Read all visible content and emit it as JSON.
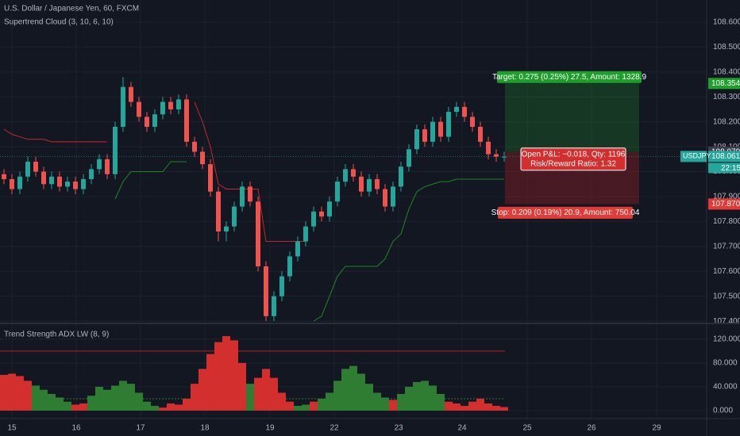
{
  "chart_data": [
    {
      "type": "candlestick",
      "title": "U.S. Dollar / Japanese Yen, 60, FXCM",
      "subtitle": "Supertrend Cloud (3, 10, 6, 10)",
      "symbol": "USDJPY",
      "up_color": "#26a69a",
      "down_color": "#ef5350",
      "open": [
        107.99,
        107.97,
        107.93,
        107.98,
        108.04,
        108.0,
        107.95,
        107.98,
        107.94,
        107.96,
        107.93,
        107.97,
        108.01,
        108.05,
        107.99,
        108.18,
        108.34,
        108.28,
        108.22,
        108.18,
        108.23,
        108.28,
        108.25,
        108.29,
        108.12,
        108.08,
        108.03,
        107.92,
        107.76,
        107.78,
        107.86,
        107.94,
        107.88,
        107.62,
        107.42,
        107.5,
        107.58,
        107.66,
        107.72,
        107.78,
        107.84,
        107.82,
        107.88,
        107.96,
        108.01,
        107.98,
        107.92,
        107.97,
        107.93,
        107.86,
        107.94,
        108.02,
        108.09,
        108.17,
        108.12,
        108.2,
        108.14,
        108.24,
        108.26,
        108.22,
        108.18,
        108.12,
        108.07,
        108.06
      ],
      "high": [
        108.01,
        107.99,
        108.0,
        108.06,
        108.06,
        108.02,
        108.0,
        108.0,
        107.98,
        107.98,
        107.99,
        108.03,
        108.07,
        108.07,
        108.2,
        108.38,
        108.36,
        108.3,
        108.24,
        108.25,
        108.3,
        108.3,
        108.31,
        108.31,
        108.14,
        108.1,
        108.05,
        107.94,
        107.8,
        107.88,
        107.96,
        107.96,
        107.9,
        107.64,
        107.52,
        107.6,
        107.68,
        107.74,
        107.8,
        107.86,
        107.86,
        107.9,
        107.98,
        108.03,
        108.03,
        108.0,
        107.99,
        107.99,
        107.95,
        107.96,
        108.04,
        108.11,
        108.19,
        108.19,
        108.22,
        108.22,
        108.26,
        108.28,
        108.28,
        108.24,
        108.2,
        108.14,
        108.09,
        108.08
      ],
      "low": [
        107.95,
        107.91,
        107.91,
        107.96,
        107.98,
        107.93,
        107.93,
        107.92,
        107.92,
        107.91,
        107.91,
        107.95,
        107.99,
        107.97,
        107.97,
        108.16,
        108.26,
        108.2,
        108.16,
        108.16,
        108.21,
        108.23,
        108.23,
        108.1,
        108.06,
        108.01,
        107.9,
        107.72,
        107.72,
        107.76,
        107.84,
        107.86,
        107.6,
        107.4,
        107.4,
        107.48,
        107.56,
        107.64,
        107.7,
        107.76,
        107.8,
        107.8,
        107.86,
        107.94,
        107.96,
        107.9,
        107.9,
        107.91,
        107.84,
        107.84,
        107.92,
        108.0,
        108.07,
        108.1,
        108.1,
        108.12,
        108.12,
        108.22,
        108.2,
        108.16,
        108.1,
        108.05,
        108.04,
        108.04
      ],
      "close": [
        107.97,
        107.93,
        107.98,
        108.04,
        108.0,
        107.95,
        107.98,
        107.94,
        107.96,
        107.93,
        107.97,
        108.01,
        108.05,
        107.99,
        108.18,
        108.34,
        108.28,
        108.22,
        108.18,
        108.23,
        108.28,
        108.25,
        108.29,
        108.12,
        108.08,
        108.03,
        107.92,
        107.76,
        107.78,
        107.86,
        107.94,
        107.88,
        107.62,
        107.42,
        107.5,
        107.58,
        107.66,
        107.72,
        107.78,
        107.84,
        107.82,
        107.88,
        107.96,
        108.01,
        107.98,
        107.92,
        107.97,
        107.93,
        107.86,
        107.94,
        108.02,
        108.09,
        108.17,
        108.12,
        108.2,
        108.14,
        108.24,
        108.26,
        108.22,
        108.18,
        108.12,
        108.07,
        108.06,
        108.06
      ],
      "series": [
        {
          "color": "#c62828",
          "values": [
            108.17,
            108.15,
            108.14,
            108.13,
            108.13,
            108.13,
            108.12,
            108.12,
            108.12,
            108.12,
            108.12,
            108.12,
            108.12,
            108.12,
            null,
            null,
            null,
            null,
            null,
            null,
            null,
            null,
            null,
            null,
            108.28,
            108.2,
            108.1,
            107.95,
            107.93,
            107.93,
            107.93,
            107.93,
            107.93,
            107.72,
            107.72,
            107.72,
            107.72,
            107.72,
            107.72,
            null,
            null,
            null,
            null,
            null,
            null,
            null,
            null,
            null,
            null,
            null,
            null,
            null,
            null,
            null,
            null,
            null,
            null,
            null,
            null,
            null,
            null,
            null,
            null,
            null
          ]
        },
        {
          "color": "#1b8a1b",
          "values": [
            null,
            null,
            null,
            null,
            null,
            null,
            null,
            null,
            null,
            null,
            null,
            null,
            null,
            null,
            107.89,
            107.96,
            108.0,
            108.0,
            108.0,
            108.0,
            108.0,
            108.04,
            108.04,
            108.04,
            null,
            null,
            null,
            null,
            null,
            null,
            null,
            null,
            null,
            null,
            null,
            null,
            null,
            null,
            null,
            107.4,
            107.42,
            107.5,
            107.58,
            107.62,
            107.62,
            107.62,
            107.62,
            107.62,
            107.65,
            107.72,
            107.75,
            107.85,
            107.92,
            107.94,
            107.95,
            107.96,
            107.96,
            107.97,
            107.97,
            107.97,
            107.97,
            107.97,
            107.97,
            107.97
          ]
        }
      ],
      "xlim": [
        -0.5,
        88.5
      ],
      "ylim": [
        107.394,
        108.689
      ],
      "yticks": [
        {
          "value": 107.4,
          "label": "107.400"
        },
        {
          "value": 107.5,
          "label": "107.500"
        },
        {
          "value": 107.6,
          "label": "107.600"
        },
        {
          "value": 107.7,
          "label": "107.700"
        },
        {
          "value": 107.8,
          "label": "107.800"
        },
        {
          "value": 107.9,
          "label": "107.900"
        },
        {
          "value": 108.0,
          "label": "108.000"
        },
        {
          "value": 108.1,
          "label": "108.100"
        },
        {
          "value": 108.2,
          "label": "108.200"
        },
        {
          "value": 108.3,
          "label": "108.300"
        },
        {
          "value": 108.4,
          "label": "108.400"
        },
        {
          "value": 108.5,
          "label": "108.500"
        },
        {
          "value": 108.6,
          "label": "108.600"
        }
      ],
      "grid": true,
      "last_price": 108.061,
      "countdown": "22:15",
      "position": {
        "target": 108.354,
        "entry": 108.079,
        "stop": {
          "value": 107.87,
          "label": "107.870"
        },
        "target_text": "Target: 0.275 (0.25%) 27.5, Amount: 1328.9",
        "pnl_text": "Open P&L: −0.018, Qty: 1196",
        "ratio_text": "Risk/Reward Ratio: 1.32",
        "stop_text": "Stop: 0.209 (0.19%) 20.9, Amount: 750.04"
      }
    },
    {
      "type": "bar",
      "title": "Trend Strength ADX LW (8, 9)",
      "series": [
        {
          "color": "#d32f2f",
          "values": [
            60,
            62,
            58,
            50,
            null,
            null,
            null,
            null,
            null,
            10,
            12,
            null,
            null,
            null,
            null,
            null,
            null,
            null,
            null,
            null,
            5,
            12,
            10,
            20,
            45,
            70,
            95,
            115,
            125,
            118,
            80,
            null,
            55,
            70,
            55,
            30,
            15,
            null,
            null,
            15,
            null,
            null,
            null,
            null,
            null,
            null,
            null,
            null,
            null,
            18,
            null,
            null,
            null,
            null,
            null,
            null,
            15,
            12,
            8,
            15,
            20,
            12,
            8,
            6
          ]
        },
        {
          "color": "#2e7d32",
          "values": [
            null,
            null,
            null,
            null,
            42,
            35,
            28,
            22,
            15,
            null,
            null,
            25,
            40,
            35,
            42,
            50,
            45,
            30,
            15,
            8,
            null,
            null,
            null,
            null,
            null,
            null,
            null,
            null,
            null,
            null,
            null,
            45,
            null,
            null,
            null,
            null,
            null,
            8,
            10,
            null,
            20,
            30,
            50,
            70,
            75,
            62,
            45,
            30,
            22,
            null,
            28,
            40,
            48,
            50,
            42,
            28,
            null,
            null,
            null,
            null,
            null,
            null,
            null,
            null
          ]
        }
      ],
      "levels": [
        {
          "value": 100,
          "color": "#b22222"
        },
        {
          "value": 20,
          "color": "#2e7d32"
        }
      ],
      "xlim": [
        -0.5,
        88.5
      ],
      "xticks": [
        {
          "value": 1,
          "label": "15"
        },
        {
          "value": 9.1,
          "label": "16"
        },
        {
          "value": 17.2,
          "label": "17"
        },
        {
          "value": 25.3,
          "label": "18"
        },
        {
          "value": 33.5,
          "label": "19"
        },
        {
          "value": 41.6,
          "label": "22"
        },
        {
          "value": 49.7,
          "label": "23"
        },
        {
          "value": 57.7,
          "label": "24"
        },
        {
          "value": 65.9,
          "label": "25"
        },
        {
          "value": 74,
          "label": "26"
        },
        {
          "value": 82.2,
          "label": "29"
        }
      ],
      "ylim": [
        -12,
        145
      ],
      "yticks": [
        {
          "value": 0,
          "label": "0.000"
        },
        {
          "value": 40,
          "label": "40.000"
        },
        {
          "value": 80,
          "label": "80.000"
        },
        {
          "value": 120,
          "label": "120.000"
        }
      ],
      "grid": true
    }
  ]
}
